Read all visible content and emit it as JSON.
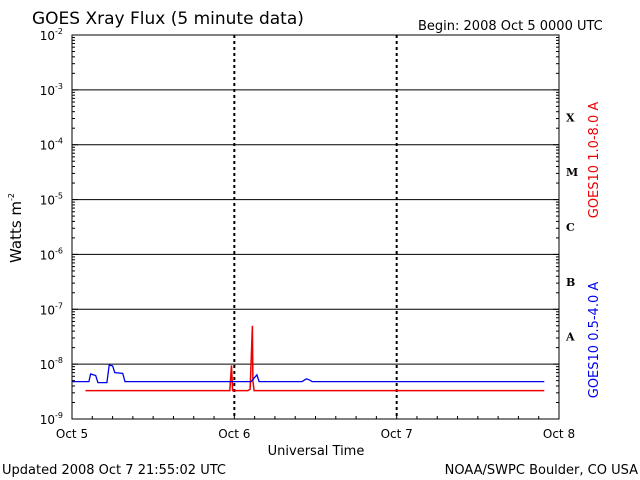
{
  "header": {
    "title": "GOES Xray Flux (5 minute data)",
    "begin": "Begin:  2008 Oct 5 0000 UTC"
  },
  "footer": {
    "updated": "Updated 2008 Oct  7 21:55:02 UTC",
    "source": "NOAA/SWPC Boulder, CO USA"
  },
  "chart_data": {
    "type": "line",
    "title": "GOES Xray Flux (5 minute data)",
    "xlabel": "Universal Time",
    "ylabel": "Watts m",
    "ylabel_exponent": "-2",
    "yscale": "log",
    "ylim": [
      1e-09,
      0.01
    ],
    "xlim": [
      "2008-10-05 00:00",
      "2008-10-08 00:00"
    ],
    "x_ticks": [
      "Oct 5",
      "Oct 6",
      "Oct 7",
      "Oct 8"
    ],
    "y_ticks": [
      {
        "base": "10",
        "exp": "-9"
      },
      {
        "base": "10",
        "exp": "-8"
      },
      {
        "base": "10",
        "exp": "-7"
      },
      {
        "base": "10",
        "exp": "-6"
      },
      {
        "base": "10",
        "exp": "-5"
      },
      {
        "base": "10",
        "exp": "-4"
      },
      {
        "base": "10",
        "exp": "-3"
      },
      {
        "base": "10",
        "exp": "-2"
      }
    ],
    "flare_classes": [
      "A",
      "B",
      "C",
      "M",
      "X"
    ],
    "grid": true,
    "series": [
      {
        "name": "GOES10 1.0-8.0 A",
        "color": "#ee0000",
        "points": [
          [
            "2008-10-05 02:00",
            3.3e-09
          ],
          [
            "2008-10-05 04:00",
            3.3e-09
          ],
          [
            "2008-10-05 08:00",
            3.3e-09
          ],
          [
            "2008-10-05 12:00",
            3.3e-09
          ],
          [
            "2008-10-05 18:00",
            3.3e-09
          ],
          [
            "2008-10-05 23:20",
            3.3e-09
          ],
          [
            "2008-10-05 23:35",
            9.5e-09
          ],
          [
            "2008-10-05 23:45",
            3.3e-09
          ],
          [
            "2008-10-06 02:00",
            3.3e-09
          ],
          [
            "2008-10-06 02:20",
            3.5e-09
          ],
          [
            "2008-10-06 02:30",
            1.2e-08
          ],
          [
            "2008-10-06 02:40",
            5e-08
          ],
          [
            "2008-10-06 02:45",
            5e-09
          ],
          [
            "2008-10-06 02:55",
            3.3e-09
          ],
          [
            "2008-10-06 06:00",
            3.3e-09
          ],
          [
            "2008-10-06 12:00",
            3.3e-09
          ],
          [
            "2008-10-06 18:00",
            3.3e-09
          ],
          [
            "2008-10-07 00:00",
            3.3e-09
          ],
          [
            "2008-10-07 06:00",
            3.3e-09
          ],
          [
            "2008-10-07 12:00",
            3.3e-09
          ],
          [
            "2008-10-07 18:00",
            3.3e-09
          ],
          [
            "2008-10-07 21:50",
            3.3e-09
          ]
        ]
      },
      {
        "name": "GOES10 0.5-4.0 A",
        "color": "#0000ee",
        "points": [
          [
            "2008-10-05 00:00",
            4.8e-09
          ],
          [
            "2008-10-05 01:10",
            4.8e-09
          ],
          [
            "2008-10-05 02:30",
            4.8e-09
          ],
          [
            "2008-10-05 02:45",
            6.6e-09
          ],
          [
            "2008-10-05 03:30",
            6.2e-09
          ],
          [
            "2008-10-05 03:50",
            4.6e-09
          ],
          [
            "2008-10-05 05:10",
            4.6e-09
          ],
          [
            "2008-10-05 05:30",
            9.6e-09
          ],
          [
            "2008-10-05 06:00",
            9.3e-09
          ],
          [
            "2008-10-05 06:20",
            7e-09
          ],
          [
            "2008-10-05 07:30",
            6.8e-09
          ],
          [
            "2008-10-05 07:50",
            4.8e-09
          ],
          [
            "2008-10-05 12:00",
            4.8e-09
          ],
          [
            "2008-10-05 18:00",
            4.8e-09
          ],
          [
            "2008-10-06 00:00",
            4.8e-09
          ],
          [
            "2008-10-06 02:30",
            4.8e-09
          ],
          [
            "2008-10-06 02:50",
            5.4e-09
          ],
          [
            "2008-10-06 03:20",
            6.4e-09
          ],
          [
            "2008-10-06 03:40",
            4.8e-09
          ],
          [
            "2008-10-06 06:00",
            4.8e-09
          ],
          [
            "2008-10-06 10:00",
            4.8e-09
          ],
          [
            "2008-10-06 10:40",
            5.4e-09
          ],
          [
            "2008-10-06 11:10",
            5.1e-09
          ],
          [
            "2008-10-06 11:30",
            4.8e-09
          ],
          [
            "2008-10-06 18:00",
            4.8e-09
          ],
          [
            "2008-10-07 00:00",
            4.8e-09
          ],
          [
            "2008-10-07 04:10",
            4.8e-09
          ],
          [
            "2008-10-07 05:10",
            4.8e-09
          ],
          [
            "2008-10-07 12:00",
            4.8e-09
          ],
          [
            "2008-10-07 18:00",
            4.8e-09
          ],
          [
            "2008-10-07 21:50",
            4.8e-09
          ]
        ]
      }
    ]
  }
}
